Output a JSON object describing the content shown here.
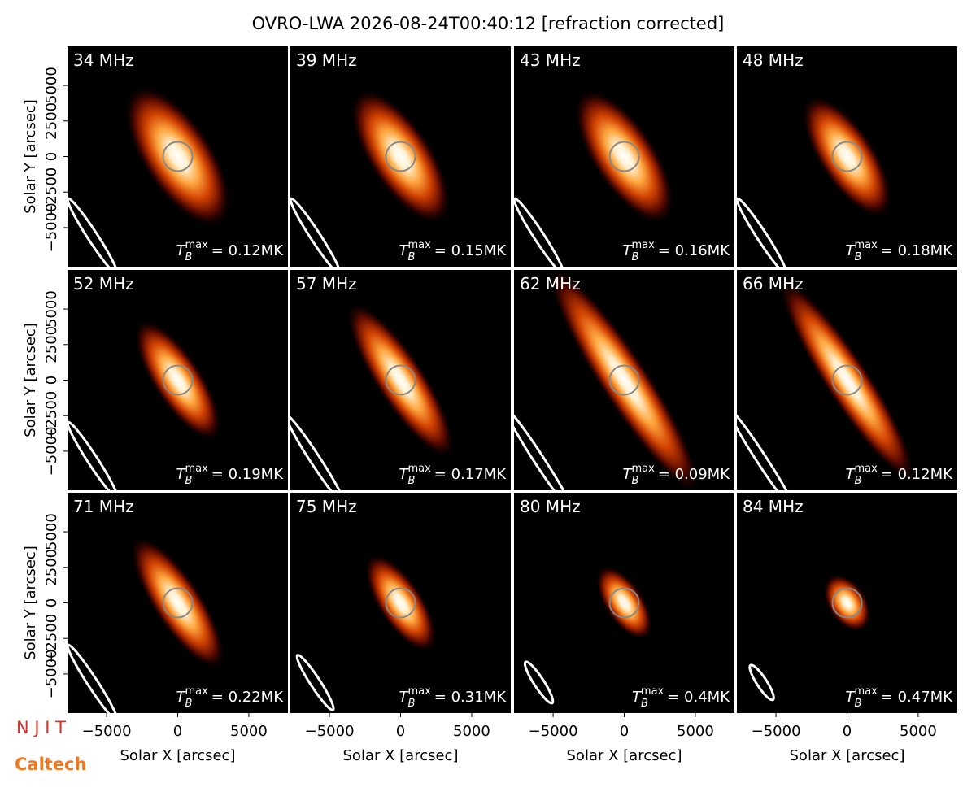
{
  "chart_data": {
    "type": "image-grid",
    "title": "OVRO-LWA 2026-08-24T00:40:12 [refraction corrected]",
    "xlabel": "Solar X [arcsec]",
    "ylabel": "Solar Y [arcsec]",
    "xlim": [
      -7750,
      7750
    ],
    "ylim": [
      -7750,
      7750
    ],
    "xticks": [
      {
        "value": -5000,
        "label": "−5000"
      },
      0,
      5000
    ],
    "yticks": [
      {
        "value": -5000,
        "label": "−5000"
      },
      {
        "value": -2500,
        "label": "−2500"
      },
      0,
      2500,
      5000
    ],
    "tb_symbol": "T",
    "tb_sub": "B",
    "tb_sup": "max",
    "panels": [
      {
        "label": "34 MHz",
        "tb_max": "= 0.12MK",
        "source_size": [
          11500,
          5000
        ],
        "beam_size": [
          6300,
          700
        ]
      },
      {
        "label": "39 MHz",
        "tb_max": "= 0.15MK",
        "source_size": [
          11000,
          4500
        ],
        "beam_size": [
          6300,
          700
        ]
      },
      {
        "label": "43 MHz",
        "tb_max": "= 0.16MK",
        "source_size": [
          11000,
          4500
        ],
        "beam_size": [
          6300,
          700
        ]
      },
      {
        "label": "48 MHz",
        "tb_max": "= 0.18MK",
        "source_size": [
          10000,
          4000
        ],
        "beam_size": [
          6300,
          700
        ]
      },
      {
        "label": "52 MHz",
        "tb_max": "= 0.19MK",
        "source_size": [
          10000,
          3500
        ],
        "beam_size": [
          6300,
          700
        ]
      },
      {
        "label": "57 MHz",
        "tb_max": "= 0.17MK",
        "source_size": [
          13000,
          3500
        ],
        "beam_size": [
          7500,
          700
        ]
      },
      {
        "label": "62 MHz",
        "tb_max": "= 0.09MK",
        "source_size": [
          19000,
          3500
        ],
        "beam_size": [
          8600,
          700
        ]
      },
      {
        "label": "66 MHz",
        "tb_max": "= 0.12MK",
        "source_size": [
          17000,
          3200
        ],
        "beam_size": [
          8600,
          700
        ]
      },
      {
        "label": "71 MHz",
        "tb_max": "= 0.22MK",
        "source_size": [
          11000,
          3500
        ],
        "beam_size": [
          6300,
          700
        ]
      },
      {
        "label": "75 MHz",
        "tb_max": "= 0.31MK",
        "source_size": [
          8000,
          3200
        ],
        "beam_size": [
          4600,
          700
        ]
      },
      {
        "label": "80 MHz",
        "tb_max": "= 0.4MK",
        "source_size": [
          6000,
          2800
        ],
        "beam_size": [
          3450,
          700
        ]
      },
      {
        "label": "84 MHz",
        "tb_max": "= 0.47MK",
        "source_size": [
          4500,
          2800
        ],
        "beam_size": [
          2900,
          700
        ]
      }
    ]
  },
  "logos": {
    "top": "N J I T",
    "bottom": "Caltech"
  }
}
